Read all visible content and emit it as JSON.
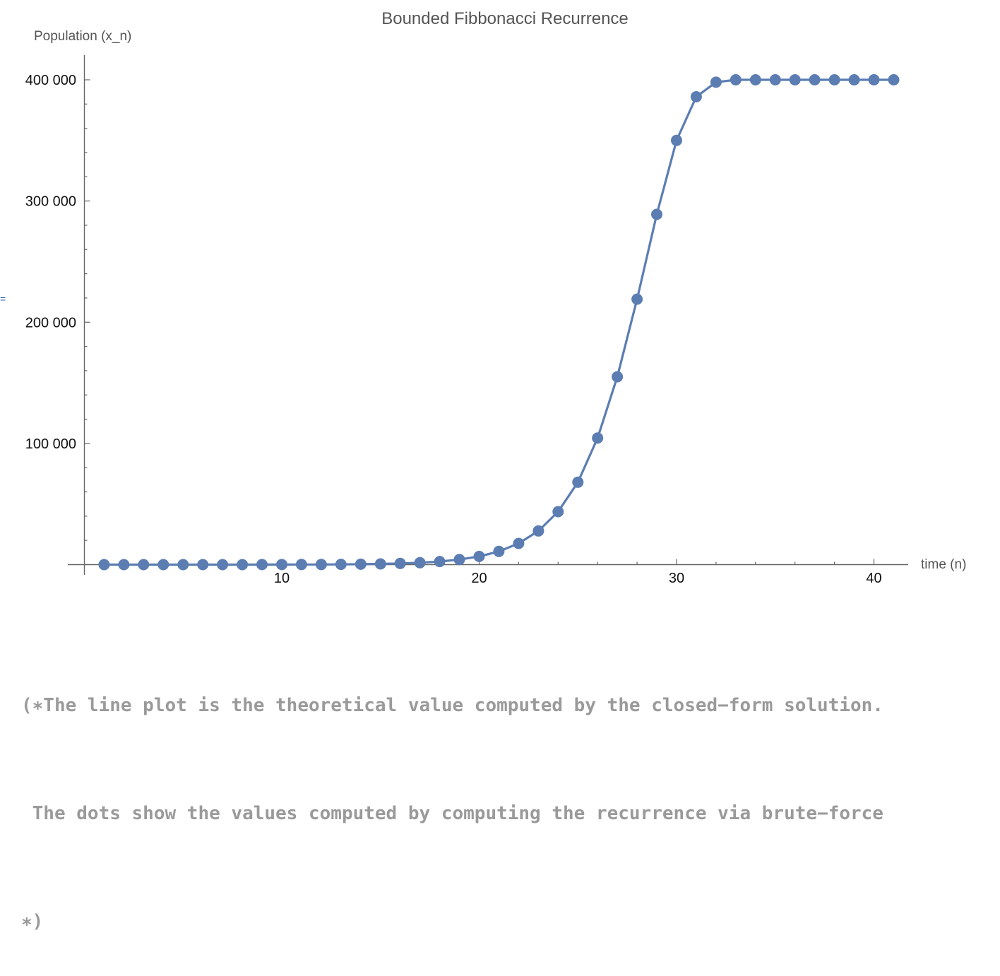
{
  "cell_marker": "=",
  "chart_data": {
    "type": "line",
    "title": "Bounded Fibbonacci Recurrence",
    "xlabel": "time (n)",
    "ylabel": "Population (x_n)",
    "xlim": [
      0,
      41.8
    ],
    "ylim": [
      0,
      420000
    ],
    "xticks": [
      {
        "value": 10,
        "label": "10"
      },
      {
        "value": 20,
        "label": "20"
      },
      {
        "value": 30,
        "label": "30"
      },
      {
        "value": 40,
        "label": "40"
      }
    ],
    "yticks": [
      {
        "value": 100000,
        "label": "100 000"
      },
      {
        "value": 200000,
        "label": "200 000"
      },
      {
        "value": 300000,
        "label": "300 000"
      },
      {
        "value": 400000,
        "label": "400 000"
      }
    ],
    "color": "#5b7db2",
    "grid": false,
    "series": [
      {
        "x": [
          1,
          2,
          3,
          4,
          5,
          6,
          7,
          8,
          9,
          10,
          11,
          12,
          13,
          14,
          15,
          16,
          17,
          18,
          19,
          20,
          21,
          22,
          23,
          24,
          25,
          26,
          27,
          28,
          29,
          30,
          31,
          32,
          33,
          34,
          35,
          36,
          37,
          38,
          39,
          40,
          41
        ],
        "values": [
          1,
          1,
          2,
          3,
          5,
          8,
          13,
          21,
          34,
          55,
          89,
          144,
          233,
          377,
          610,
          987,
          1597,
          2584,
          4180,
          6760,
          10900,
          17500,
          27800,
          43700,
          68000,
          104500,
          155000,
          219000,
          289000,
          350000,
          386000,
          398000,
          400000,
          400000,
          400000,
          400000,
          400000,
          400000,
          400000,
          400000,
          400000
        ]
      }
    ]
  },
  "comment": {
    "line1": "(∗The line plot is the theoretical value computed by the closed−form solution.",
    "line2": " The dots show the values computed by computing the recurrence via brute−force",
    "line3": "∗)"
  }
}
